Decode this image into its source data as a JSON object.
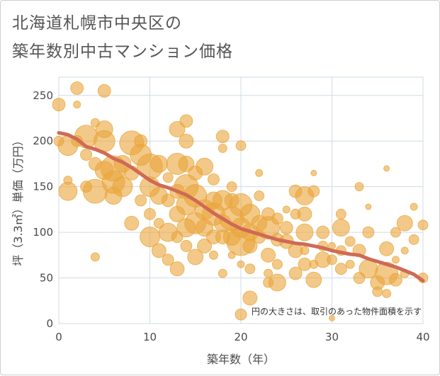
{
  "title_lines": [
    "北海道札幌市中央区の",
    "築年数別中古マンション価格"
  ],
  "note": "円の大きさは、取引のあった物件面積を示す",
  "colors": {
    "bubble": "#eaa53a",
    "trend": "#cf6a55",
    "grid": "#cfdbe3",
    "plot_border": "#cfdbe3"
  },
  "chart_data": {
    "type": "scatter",
    "xlabel": "築年数（年）",
    "ylabel": "坪（3.3㎡）単価（万円）",
    "xlim": [
      0,
      40
    ],
    "ylim": [
      0,
      270
    ],
    "xticks": [
      "0",
      "10",
      "20",
      "30",
      "40"
    ],
    "yticks": [
      "0",
      "50",
      "100",
      "150",
      "200",
      "250"
    ],
    "points": [
      [
        0,
        240,
        9
      ],
      [
        0,
        200,
        7
      ],
      [
        1,
        195,
        14
      ],
      [
        1,
        145,
        13
      ],
      [
        1,
        157,
        6
      ],
      [
        2,
        258,
        9
      ],
      [
        2,
        240,
        5
      ],
      [
        2,
        200,
        8
      ],
      [
        3,
        205,
        16
      ],
      [
        3,
        185,
        8
      ],
      [
        3,
        150,
        8
      ],
      [
        4,
        145,
        17
      ],
      [
        4,
        220,
        6
      ],
      [
        4,
        73,
        6
      ],
      [
        4,
        175,
        9
      ],
      [
        5,
        255,
        9
      ],
      [
        5,
        200,
        15
      ],
      [
        5,
        168,
        13
      ],
      [
        5,
        213,
        12
      ],
      [
        6,
        170,
        18
      ],
      [
        6,
        155,
        16
      ],
      [
        6,
        140,
        12
      ],
      [
        7,
        175,
        12
      ],
      [
        7,
        150,
        14
      ],
      [
        8,
        198,
        17
      ],
      [
        8,
        165,
        10
      ],
      [
        8,
        110,
        10
      ],
      [
        9,
        185,
        15
      ],
      [
        9,
        200,
        9
      ],
      [
        9,
        135,
        8
      ],
      [
        10,
        172,
        18
      ],
      [
        10,
        150,
        14
      ],
      [
        10,
        120,
        8
      ],
      [
        10,
        95,
        14
      ],
      [
        11,
        175,
        12
      ],
      [
        11,
        140,
        12
      ],
      [
        11,
        110,
        7
      ],
      [
        11,
        80,
        10
      ],
      [
        12,
        160,
        7
      ],
      [
        12,
        135,
        9
      ],
      [
        12,
        100,
        13
      ],
      [
        12,
        70,
        8
      ],
      [
        13,
        213,
        11
      ],
      [
        13,
        175,
        15
      ],
      [
        13,
        145,
        10
      ],
      [
        13,
        120,
        11
      ],
      [
        13,
        95,
        8
      ],
      [
        13,
        60,
        10
      ],
      [
        14,
        222,
        9
      ],
      [
        14,
        200,
        10
      ],
      [
        14,
        175,
        11
      ],
      [
        14,
        150,
        17
      ],
      [
        14,
        130,
        14
      ],
      [
        14,
        105,
        13
      ],
      [
        14,
        85,
        8
      ],
      [
        15,
        165,
        10
      ],
      [
        15,
        140,
        16
      ],
      [
        15,
        110,
        15
      ],
      [
        15,
        73,
        11
      ],
      [
        16,
        172,
        12
      ],
      [
        16,
        125,
        14
      ],
      [
        16,
        105,
        12
      ],
      [
        16,
        85,
        10
      ],
      [
        17,
        158,
        8
      ],
      [
        17,
        135,
        12
      ],
      [
        17,
        120,
        16
      ],
      [
        17,
        95,
        10
      ],
      [
        17,
        75,
        6
      ],
      [
        18,
        205,
        9
      ],
      [
        18,
        192,
        6
      ],
      [
        18,
        135,
        14
      ],
      [
        18,
        110,
        12
      ],
      [
        18,
        95,
        10
      ],
      [
        18,
        55,
        6
      ],
      [
        19,
        150,
        7
      ],
      [
        19,
        135,
        10
      ],
      [
        19,
        115,
        17
      ],
      [
        19,
        95,
        12
      ],
      [
        19,
        75,
        5
      ],
      [
        20,
        195,
        7
      ],
      [
        20,
        130,
        16
      ],
      [
        20,
        105,
        14
      ],
      [
        20,
        90,
        20
      ],
      [
        20,
        65,
        5
      ],
      [
        20,
        10,
        8
      ],
      [
        21,
        120,
        14
      ],
      [
        21,
        100,
        12
      ],
      [
        21,
        85,
        10
      ],
      [
        21,
        60,
        7
      ],
      [
        21,
        28,
        10
      ],
      [
        22,
        165,
        5
      ],
      [
        22,
        140,
        7
      ],
      [
        22,
        110,
        11
      ],
      [
        22,
        95,
        9
      ],
      [
        23,
        120,
        9
      ],
      [
        23,
        105,
        16
      ],
      [
        23,
        75,
        10
      ],
      [
        23,
        55,
        6
      ],
      [
        23,
        45,
        7
      ],
      [
        24,
        115,
        8
      ],
      [
        24,
        92,
        9
      ],
      [
        24,
        65,
        7
      ],
      [
        24,
        45,
        12
      ],
      [
        25,
        125,
        5
      ],
      [
        25,
        105,
        9
      ],
      [
        25,
        90,
        10
      ],
      [
        26,
        145,
        9
      ],
      [
        26,
        120,
        7
      ],
      [
        26,
        80,
        10
      ],
      [
        26,
        55,
        9
      ],
      [
        27,
        140,
        13
      ],
      [
        27,
        120,
        10
      ],
      [
        27,
        100,
        12
      ],
      [
        27,
        80,
        6
      ],
      [
        27,
        65,
        9
      ],
      [
        28,
        165,
        4
      ],
      [
        28,
        145,
        8
      ],
      [
        28,
        65,
        6
      ],
      [
        28,
        48,
        11
      ],
      [
        29,
        100,
        9
      ],
      [
        29,
        85,
        7
      ],
      [
        29,
        70,
        11
      ],
      [
        30,
        85,
        5
      ],
      [
        30,
        70,
        7
      ],
      [
        30,
        6,
        4
      ],
      [
        31,
        120,
        7
      ],
      [
        31,
        105,
        12
      ],
      [
        31,
        80,
        7
      ],
      [
        31,
        60,
        8
      ],
      [
        32,
        90,
        7
      ],
      [
        32,
        65,
        6
      ],
      [
        33,
        150,
        6
      ],
      [
        33,
        80,
        9
      ],
      [
        33,
        50,
        8
      ],
      [
        34,
        128,
        4
      ],
      [
        34,
        100,
        8
      ],
      [
        34,
        60,
        13
      ],
      [
        35,
        35,
        7
      ],
      [
        35,
        45,
        10
      ],
      [
        36,
        170,
        4
      ],
      [
        36,
        82,
        10
      ],
      [
        36,
        55,
        16
      ],
      [
        36,
        33,
        6
      ],
      [
        37,
        100,
        7
      ],
      [
        37,
        70,
        5
      ],
      [
        37,
        48,
        9
      ],
      [
        38,
        110,
        11
      ],
      [
        38,
        80,
        5
      ],
      [
        38,
        55,
        6
      ],
      [
        39,
        128,
        5
      ],
      [
        39,
        92,
        7
      ],
      [
        40,
        108,
        7
      ],
      [
        40,
        50,
        7
      ]
    ],
    "trend": [
      [
        0,
        209
      ],
      [
        1,
        207
      ],
      [
        2,
        202
      ],
      [
        3,
        194
      ],
      [
        4,
        191
      ],
      [
        5,
        187
      ],
      [
        6,
        181
      ],
      [
        7,
        177
      ],
      [
        8,
        171
      ],
      [
        9,
        164
      ],
      [
        10,
        157
      ],
      [
        11,
        152
      ],
      [
        12,
        149
      ],
      [
        13,
        145
      ],
      [
        14,
        141
      ],
      [
        15,
        135
      ],
      [
        16,
        128
      ],
      [
        17,
        121
      ],
      [
        18,
        115
      ],
      [
        19,
        109
      ],
      [
        20,
        104
      ],
      [
        21,
        101
      ],
      [
        22,
        98
      ],
      [
        23,
        95
      ],
      [
        24,
        92
      ],
      [
        25,
        90
      ],
      [
        26,
        88
      ],
      [
        27,
        87
      ],
      [
        28,
        85
      ],
      [
        29,
        83
      ],
      [
        30,
        80
      ],
      [
        31,
        78
      ],
      [
        32,
        76
      ],
      [
        33,
        75
      ],
      [
        34,
        71
      ],
      [
        35,
        68
      ],
      [
        36,
        65
      ],
      [
        37,
        62
      ],
      [
        38,
        58
      ],
      [
        39,
        54
      ],
      [
        40,
        47
      ]
    ]
  }
}
